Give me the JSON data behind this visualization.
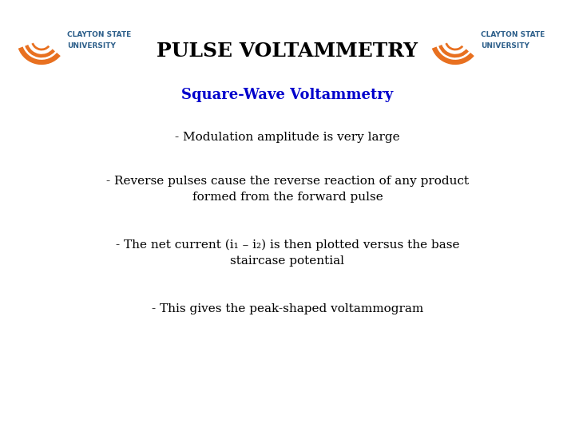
{
  "title": "PULSE VOLTAMMETRY",
  "subtitle": "Square-Wave Voltammetry",
  "bullet1": "- Modulation amplitude is very large",
  "bullet2_line1": "- Reverse pulses cause the reverse reaction of any product",
  "bullet2_line2": "formed from the forward pulse",
  "bullet3_line1": "- The net current (i₁ – i₂) is then plotted versus the base",
  "bullet3_line2": "staircase potential",
  "bullet4": "- This gives the peak-shaped voltammogram",
  "bg_color": "#ffffff",
  "title_color": "#000000",
  "subtitle_color": "#0000cc",
  "text_color": "#000000",
  "title_fontsize": 18,
  "subtitle_fontsize": 13,
  "body_fontsize": 11,
  "logo_arc_color": "#E87020",
  "logo_text_color": "#2D5F8A"
}
